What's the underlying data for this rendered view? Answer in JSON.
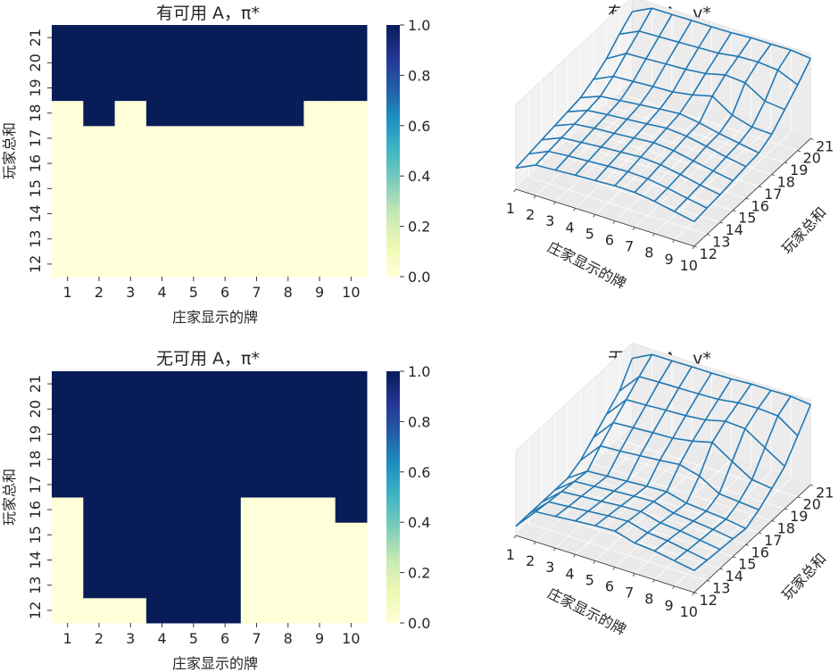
{
  "colorbar": {
    "ticks": [
      "0.0",
      "0.2",
      "0.4",
      "0.6",
      "0.8",
      "1.0"
    ],
    "low_color": "#ffffd9",
    "high_color": "#081d58"
  },
  "chart_data": [
    {
      "type": "heatmap",
      "title": "有可用 A，π*",
      "xlabel": "庄家显示的牌",
      "ylabel": "玩家总和",
      "x": [
        "1",
        "2",
        "3",
        "4",
        "5",
        "6",
        "7",
        "8",
        "9",
        "10"
      ],
      "y": [
        "12",
        "13",
        "14",
        "15",
        "16",
        "17",
        "18",
        "19",
        "20",
        "21"
      ],
      "vmin": 0,
      "vmax": 1,
      "values": [
        [
          0,
          0,
          0,
          0,
          0,
          0,
          0,
          0,
          0,
          0
        ],
        [
          0,
          0,
          0,
          0,
          0,
          0,
          0,
          0,
          0,
          0
        ],
        [
          0,
          0,
          0,
          0,
          0,
          0,
          0,
          0,
          0,
          0
        ],
        [
          0,
          0,
          0,
          0,
          0,
          0,
          0,
          0,
          0,
          0
        ],
        [
          0,
          0,
          0,
          0,
          0,
          0,
          0,
          0,
          0,
          0
        ],
        [
          0,
          0,
          0,
          0,
          0,
          0,
          0,
          0,
          0,
          0
        ],
        [
          0,
          1,
          0,
          1,
          1,
          1,
          1,
          1,
          0,
          0
        ],
        [
          1,
          1,
          1,
          1,
          1,
          1,
          1,
          1,
          1,
          1
        ],
        [
          1,
          1,
          1,
          1,
          1,
          1,
          1,
          1,
          1,
          1
        ],
        [
          1,
          1,
          1,
          1,
          1,
          1,
          1,
          1,
          1,
          1
        ]
      ]
    },
    {
      "type": "surface",
      "title": "有可用 A，v*",
      "xlabel": "庄家显示的牌",
      "ylabel": "玩家总和",
      "x": [
        "1",
        "2",
        "3",
        "4",
        "5",
        "6",
        "7",
        "8",
        "9",
        "10"
      ],
      "y": [
        "12",
        "13",
        "14",
        "15",
        "16",
        "17",
        "18",
        "19",
        "20",
        "21"
      ],
      "z": [
        [
          -0.5,
          -0.28,
          -0.25,
          -0.22,
          -0.2,
          -0.17,
          -0.18,
          -0.24,
          -0.33,
          -0.42
        ],
        [
          -0.45,
          -0.24,
          -0.2,
          -0.17,
          -0.14,
          -0.12,
          -0.14,
          -0.21,
          -0.3,
          -0.38
        ],
        [
          -0.4,
          -0.2,
          -0.16,
          -0.12,
          -0.09,
          -0.06,
          -0.09,
          -0.17,
          -0.27,
          -0.35
        ],
        [
          -0.35,
          -0.16,
          -0.11,
          -0.08,
          -0.04,
          0.0,
          -0.04,
          -0.13,
          -0.22,
          -0.3
        ],
        [
          -0.3,
          -0.12,
          -0.07,
          -0.03,
          0.01,
          0.06,
          0.02,
          -0.07,
          -0.17,
          -0.25
        ],
        [
          -0.25,
          -0.07,
          -0.02,
          0.03,
          0.08,
          0.12,
          0.05,
          -0.05,
          -0.13,
          -0.21
        ],
        [
          -0.1,
          0.12,
          0.15,
          0.18,
          0.2,
          0.28,
          0.4,
          0.1,
          -0.03,
          -0.05
        ],
        [
          0.1,
          0.38,
          0.4,
          0.43,
          0.45,
          0.5,
          0.62,
          0.58,
          0.3,
          0.25
        ],
        [
          0.4,
          0.62,
          0.64,
          0.66,
          0.68,
          0.7,
          0.77,
          0.79,
          0.75,
          0.55
        ],
        [
          0.65,
          0.88,
          0.88,
          0.89,
          0.89,
          0.9,
          0.93,
          0.93,
          0.94,
          0.89
        ]
      ]
    },
    {
      "type": "heatmap",
      "title": "无可用 A，π*",
      "xlabel": "庄家显示的牌",
      "ylabel": "玩家总和",
      "x": [
        "1",
        "2",
        "3",
        "4",
        "5",
        "6",
        "7",
        "8",
        "9",
        "10"
      ],
      "y": [
        "12",
        "13",
        "14",
        "15",
        "16",
        "17",
        "18",
        "19",
        "20",
        "21"
      ],
      "vmin": 0,
      "vmax": 1,
      "values": [
        [
          0,
          0,
          0,
          1,
          1,
          1,
          0,
          0,
          0,
          0
        ],
        [
          0,
          1,
          1,
          1,
          1,
          1,
          0,
          0,
          0,
          0
        ],
        [
          0,
          1,
          1,
          1,
          1,
          1,
          0,
          0,
          0,
          0
        ],
        [
          0,
          1,
          1,
          1,
          1,
          1,
          0,
          0,
          0,
          0
        ],
        [
          0,
          1,
          1,
          1,
          1,
          1,
          0,
          0,
          0,
          1
        ],
        [
          1,
          1,
          1,
          1,
          1,
          1,
          1,
          1,
          1,
          1
        ],
        [
          1,
          1,
          1,
          1,
          1,
          1,
          1,
          1,
          1,
          1
        ],
        [
          1,
          1,
          1,
          1,
          1,
          1,
          1,
          1,
          1,
          1
        ],
        [
          1,
          1,
          1,
          1,
          1,
          1,
          1,
          1,
          1,
          1
        ],
        [
          1,
          1,
          1,
          1,
          1,
          1,
          1,
          1,
          1,
          1
        ]
      ]
    },
    {
      "type": "surface",
      "title": "无可用 A，v*",
      "xlabel": "庄家显示的牌",
      "ylabel": "玩家总和",
      "x": [
        "1",
        "2",
        "3",
        "4",
        "5",
        "6",
        "7",
        "8",
        "9",
        "10"
      ],
      "y": [
        "12",
        "13",
        "14",
        "15",
        "16",
        "17",
        "18",
        "19",
        "20",
        "21"
      ],
      "z": [
        [
          -0.78,
          -0.29,
          -0.25,
          -0.21,
          -0.17,
          -0.15,
          -0.28,
          -0.32,
          -0.4,
          -0.48
        ],
        [
          -0.78,
          -0.34,
          -0.3,
          -0.26,
          -0.22,
          -0.2,
          -0.32,
          -0.36,
          -0.44,
          -0.52
        ],
        [
          -0.78,
          -0.38,
          -0.34,
          -0.31,
          -0.27,
          -0.25,
          -0.37,
          -0.41,
          -0.48,
          -0.55
        ],
        [
          -0.78,
          -0.42,
          -0.39,
          -0.35,
          -0.32,
          -0.3,
          -0.42,
          -0.46,
          -0.51,
          -0.58
        ],
        [
          -0.78,
          -0.46,
          -0.43,
          -0.4,
          -0.37,
          -0.35,
          -0.47,
          -0.51,
          -0.55,
          -0.62
        ],
        [
          -0.64,
          -0.15,
          -0.12,
          -0.08,
          -0.04,
          0.01,
          -0.11,
          -0.38,
          -0.42,
          -0.46
        ],
        [
          -0.38,
          0.12,
          0.15,
          0.18,
          0.2,
          0.28,
          0.4,
          0.1,
          -0.18,
          -0.24
        ],
        [
          -0.12,
          0.38,
          0.4,
          0.43,
          0.45,
          0.5,
          0.62,
          0.59,
          0.29,
          0.0
        ],
        [
          0.15,
          0.64,
          0.66,
          0.67,
          0.68,
          0.7,
          0.77,
          0.79,
          0.76,
          0.44
        ],
        [
          0.64,
          0.88,
          0.88,
          0.89,
          0.89,
          0.9,
          0.93,
          0.93,
          0.94,
          0.89
        ]
      ]
    }
  ]
}
